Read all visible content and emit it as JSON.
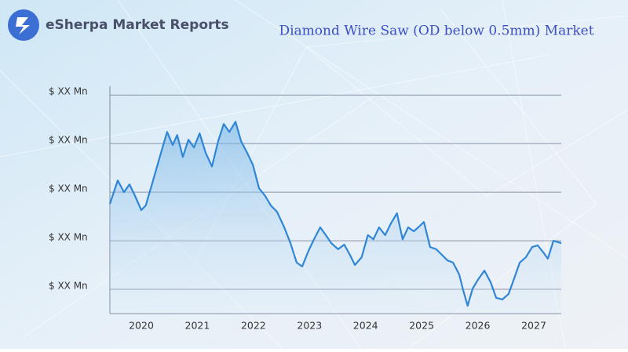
{
  "header": {
    "brand": "eSherpa Market Reports"
  },
  "chart_data": {
    "type": "line",
    "title": "Diamond Wire Saw (OD below 0.5mm) Market",
    "color": "#2f86d6",
    "grid": true,
    "xlim": [
      2019.44,
      2027.49
    ],
    "xticks": [
      2020,
      2021,
      2022,
      2023,
      2024,
      2025,
      2026,
      2027
    ],
    "ylim": [
      0,
      92
    ],
    "yticks": [
      {
        "value": 10,
        "label": "$ XX Mn"
      },
      {
        "value": 30,
        "label": "$ XX Mn"
      },
      {
        "value": 50,
        "label": "$ XX Mn"
      },
      {
        "value": 70,
        "label": "$ XX Mn"
      },
      {
        "value": 90,
        "label": "$ XX Mn"
      }
    ],
    "x": [
      2019.44,
      2019.58,
      2019.69,
      2019.79,
      2019.89,
      2020,
      2020.08,
      2020.21,
      2020.35,
      2020.46,
      2020.56,
      2020.64,
      2020.74,
      2020.84,
      2020.94,
      2021.04,
      2021.15,
      2021.26,
      2021.37,
      2021.47,
      2021.57,
      2021.68,
      2021.78,
      2021.89,
      2021.99,
      2022.1,
      2022.21,
      2022.31,
      2022.42,
      2022.55,
      2022.66,
      2022.77,
      2022.87,
      2022.98,
      2023.08,
      2023.19,
      2023.29,
      2023.39,
      2023.51,
      2023.62,
      2023.72,
      2023.81,
      2023.93,
      2024.04,
      2024.14,
      2024.24,
      2024.35,
      2024.45,
      2024.56,
      2024.66,
      2024.76,
      2024.86,
      2024.94,
      2025.04,
      2025.15,
      2025.26,
      2025.36,
      2025.46,
      2025.56,
      2025.67,
      2025.74,
      2025.82,
      2025.91,
      2026.02,
      2026.12,
      2026.23,
      2026.33,
      2026.44,
      2026.55,
      2026.65,
      2026.75,
      2026.86,
      2026.97,
      2027.07,
      2027.17,
      2027.25,
      2027.35,
      2027.49
    ],
    "values": [
      45.2,
      54.8,
      50,
      53.2,
      48.4,
      42.6,
      44.5,
      54.8,
      66.1,
      74.8,
      69.4,
      73.5,
      64.5,
      71.6,
      68.4,
      74.2,
      66.1,
      60.6,
      71,
      78.1,
      74.8,
      79,
      71,
      66.1,
      61.3,
      51.6,
      48.4,
      44.5,
      41.9,
      35.5,
      29,
      21,
      19.4,
      25.8,
      30.6,
      35.5,
      32.3,
      29,
      26.5,
      28.4,
      24.2,
      20,
      23.2,
      32.3,
      30.6,
      35.5,
      32.3,
      37.1,
      41.3,
      30.6,
      35.5,
      33.9,
      35.5,
      37.7,
      27.4,
      26.5,
      24.2,
      21.9,
      21,
      16.1,
      9.7,
      3.2,
      10.3,
      14.5,
      17.7,
      12.9,
      6.5,
      5.8,
      8.1,
      14.5,
      21,
      23.2,
      27.4,
      28.1,
      25.2,
      22.6,
      30,
      29
    ]
  }
}
